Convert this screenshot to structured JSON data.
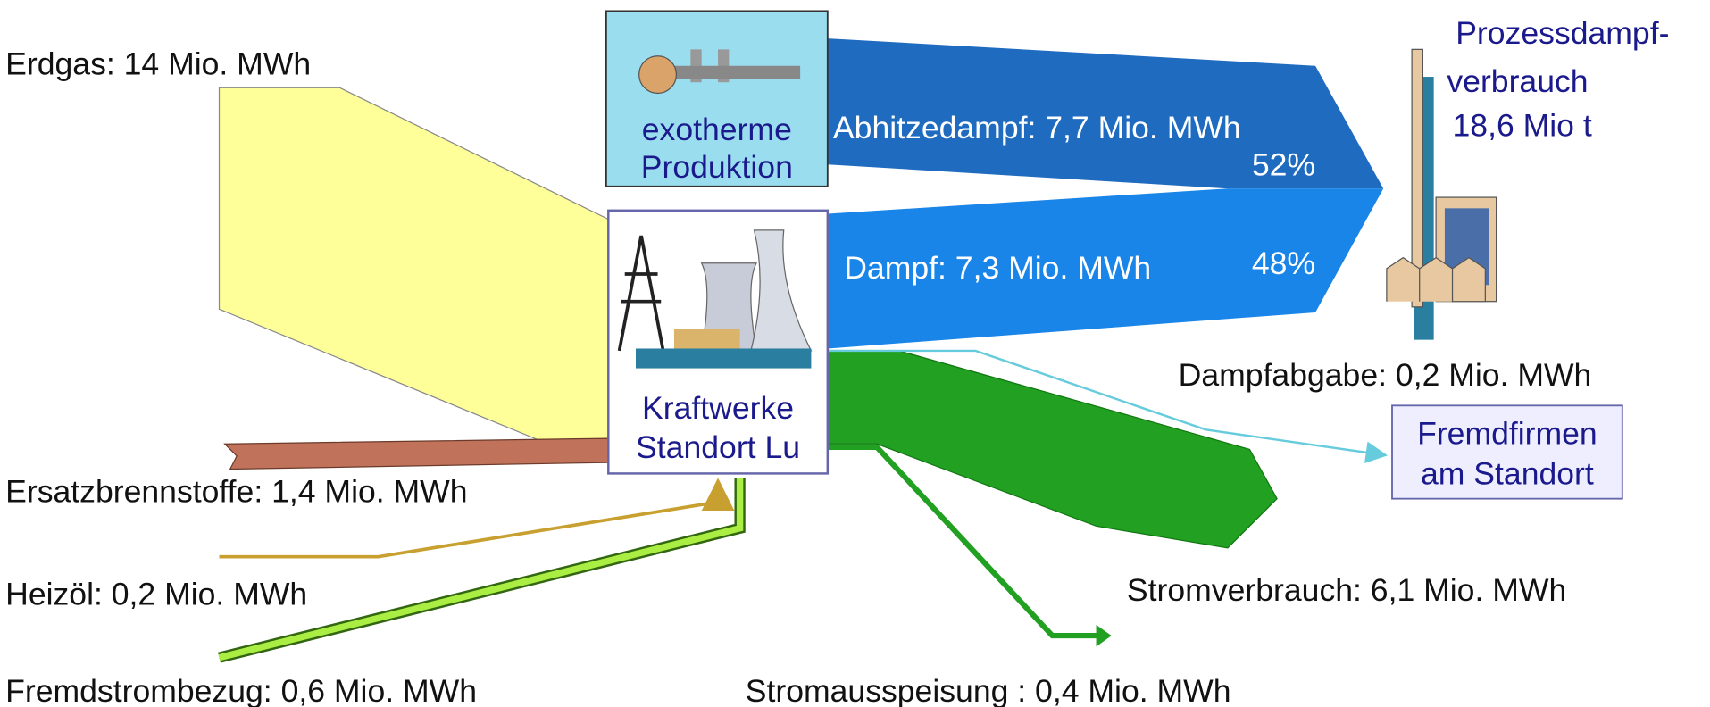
{
  "sources": [
    "Erdgas: 14 Mio. MWh",
    "Ersatzbrennstoffe: 1,4 Mio. MWh",
    "Heizöl: 0,2 Mio. MWh",
    "Fremdstrombezug: 0,6 Mio. MWh"
  ],
  "nodes": {
    "production": [
      "exotherme",
      "Produktion"
    ],
    "plant": [
      "Kraftwerke",
      "Standort Lu"
    ],
    "consumer": [
      "Prozessdampf-",
      "verbrauch",
      "18,6 Mio t"
    ],
    "third_parties": [
      "Fremdfirmen",
      "am Standort"
    ]
  },
  "flows": {
    "waste_heat_steam": {
      "label": "Abhitzedampf: 7,7 Mio. MWh",
      "share": "52%"
    },
    "steam": {
      "label": "Dampf: 7,3 Mio. MWh",
      "share": "48%"
    },
    "steam_export": {
      "label": "Dampfabgabe: 0,2 Mio. MWh"
    },
    "power_use": {
      "label": "Stromverbrauch: 6,1 Mio. MWh"
    },
    "power_export": {
      "label": "Stromausspeisung : 0,4 Mio. MWh"
    }
  }
}
